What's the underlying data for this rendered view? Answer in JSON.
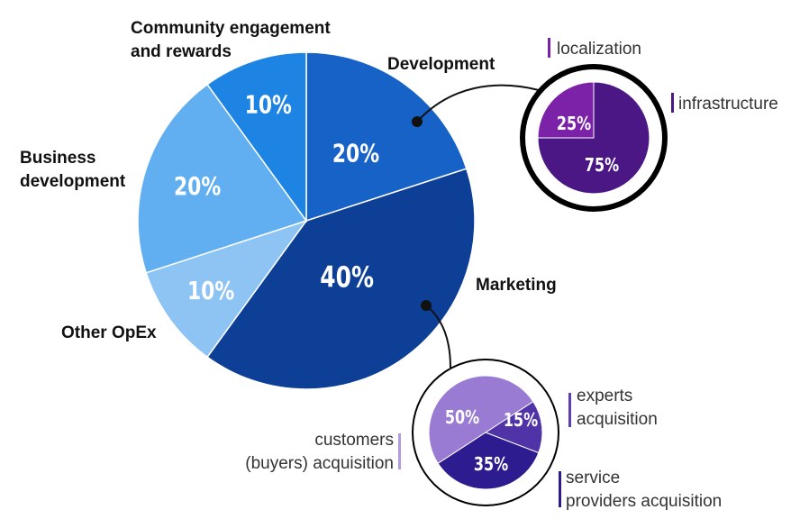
{
  "chart_data": [
    {
      "type": "pie",
      "categories": [
        "Development",
        "Marketing",
        "Other OpEx",
        "Business development",
        "Community engagement and rewards"
      ],
      "values": [
        20,
        40,
        10,
        20,
        10
      ],
      "value_labels": [
        "20%",
        "40%",
        "10%",
        "20%",
        "10%"
      ],
      "colors": [
        "#1762c7",
        "#0d3f97",
        "#8ec4f4",
        "#61aff1",
        "#1e84e3"
      ],
      "label_lines": [
        [
          "Development"
        ],
        [
          "Marketing"
        ],
        [
          "Other OpEx"
        ],
        [
          "Business",
          "development"
        ],
        [
          "Community engagement",
          "and rewards"
        ]
      ]
    },
    {
      "type": "pie",
      "parent": "Development",
      "categories": [
        "localization",
        "infrastructure"
      ],
      "values": [
        25,
        75
      ],
      "value_labels": [
        "25%",
        "75%"
      ],
      "colors": [
        "#7b22a8",
        "#4a1784"
      ],
      "legend_colors": [
        "#7b22a8",
        "#4a1784"
      ]
    },
    {
      "type": "pie",
      "parent": "Marketing",
      "categories": [
        "customers (buyers) acquisition",
        "experts acquisition",
        "service providers acquisition"
      ],
      "values": [
        50,
        15,
        35
      ],
      "value_labels": [
        "50%",
        "15%",
        "35%"
      ],
      "colors": [
        "#9a7bd3",
        "#5133a8",
        "#2d1c8f"
      ],
      "legend_colors": [
        "#b19be0",
        "#5d3fb2",
        "#2d1c8f"
      ],
      "label_lines": [
        [
          "customers",
          "(buyers) acquisition"
        ],
        [
          "experts",
          "acquisition"
        ],
        [
          "service",
          "providers acquisition"
        ]
      ]
    }
  ]
}
